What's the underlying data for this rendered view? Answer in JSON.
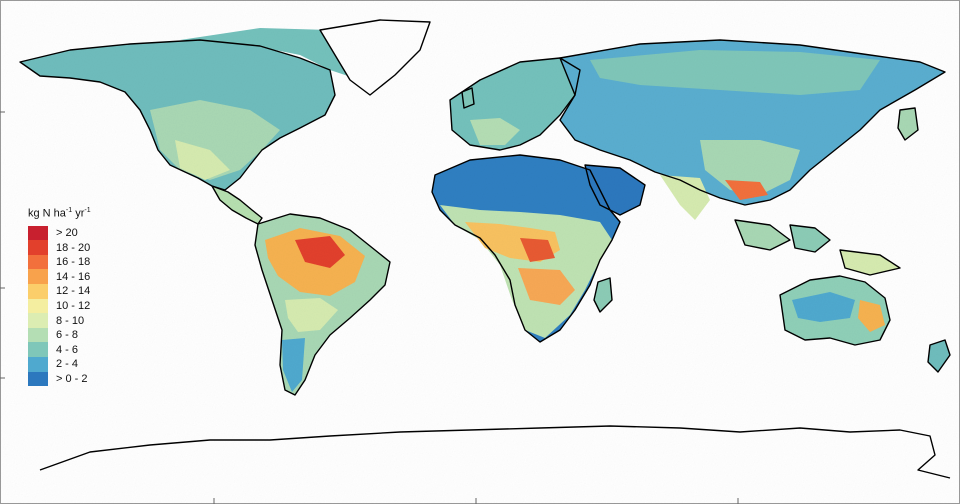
{
  "legend": {
    "title_parts": {
      "base": "kg N ha",
      "sup1": "-1",
      "mid": " yr",
      "sup2": "-1"
    },
    "classes": [
      {
        "label": "> 20",
        "color": "#c8202f"
      },
      {
        "label": "18 - 20",
        "color": "#e2402c"
      },
      {
        "label": "16 - 18",
        "color": "#f2703c"
      },
      {
        "label": "14 - 16",
        "color": "#f8a24c"
      },
      {
        "label": "12 - 14",
        "color": "#fbce6a"
      },
      {
        "label": "10 - 12",
        "color": "#f4eea0"
      },
      {
        "label": "8 - 10",
        "color": "#dcedb2"
      },
      {
        "label": "6 - 8",
        "color": "#b4deb4"
      },
      {
        "label": "4 - 6",
        "color": "#7fc7b9"
      },
      {
        "label": "2 - 4",
        "color": "#4fa9cf"
      },
      {
        "label": "> 0 - 2",
        "color": "#2c78be"
      }
    ]
  }
}
